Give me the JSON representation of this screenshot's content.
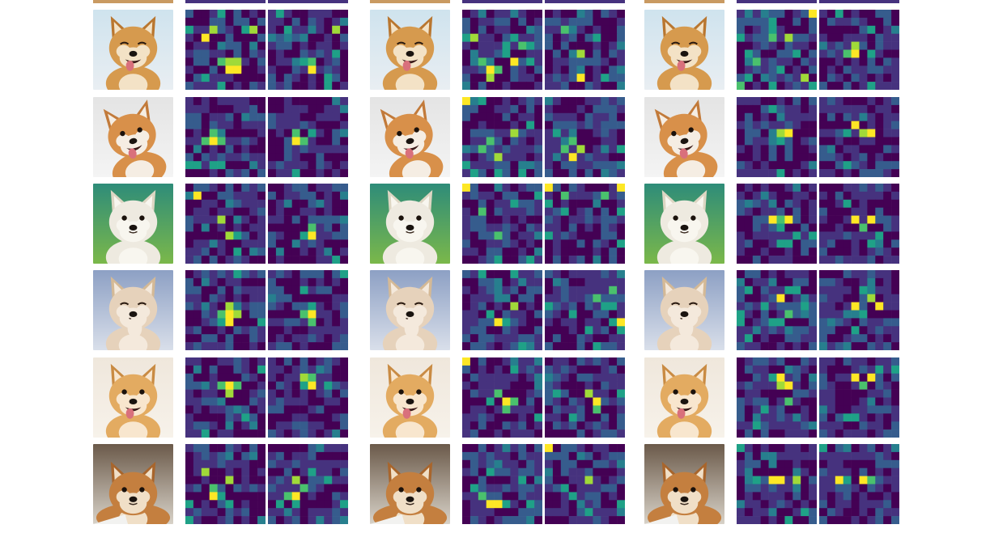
{
  "palette": {
    "viridis": [
      "#440154",
      "#46327e",
      "#365c8d",
      "#277f8e",
      "#1fa187",
      "#4ac16d",
      "#a0da39",
      "#fde725"
    ]
  },
  "groups": [
    {
      "rows": [
        {
          "dog": "shiba-smiling",
          "maps": [
            {
              "grid": 10,
              "hot": [
                [
                  5,
                  7
                ],
                [
                  6,
                  7
                ],
                [
                  2,
                  3
                ]
              ],
              "warm": [
                [
                  4,
                  6
                ],
                [
                  5,
                  6
                ],
                [
                  6,
                  6
                ],
                [
                  3,
                  2
                ],
                [
                  8,
                  2
                ],
                [
                  2,
                  8
                ]
              ],
              "noise": 0.35
            },
            {
              "grid": 10,
              "hot": [
                [
                  5,
                  7
                ]
              ],
              "warm": [
                [
                  2,
                  2
                ],
                [
                  8,
                  2
                ],
                [
                  5,
                  6
                ]
              ],
              "noise": 0.25
            }
          ]
        },
        {
          "dog": "corgi-grass",
          "maps": [
            {
              "grid": 10,
              "hot": [
                [
                  3,
                  5
                ]
              ],
              "warm": [
                [
                  2,
                  5
                ],
                [
                  3,
                  4
                ],
                [
                  4,
                  5
                ]
              ],
              "noise": 0.28
            },
            {
              "grid": 10,
              "hot": [
                [
                  3,
                  5
                ]
              ],
              "warm": [
                [
                  3,
                  4
                ],
                [
                  4,
                  5
                ]
              ],
              "noise": 0.22
            }
          ]
        },
        {
          "dog": "white-puppy",
          "maps": [
            {
              "grid": 10,
              "hot": [
                [
                  1,
                  1
                ]
              ],
              "warm": [
                [
                  5,
                  6
                ],
                [
                  6,
                  6
                ],
                [
                  4,
                  4
                ]
              ],
              "noise": 0.28
            },
            {
              "grid": 10,
              "hot": [
                [
                  5,
                  6
                ]
              ],
              "warm": [
                [
                  5,
                  5
                ],
                [
                  4,
                  6
                ]
              ],
              "noise": 0.22
            }
          ]
        },
        {
          "dog": "fluffy-puppy",
          "maps": [
            {
              "grid": 10,
              "hot": [
                [
                  5,
                  5
                ],
                [
                  5,
                  6
                ]
              ],
              "warm": [
                [
                  4,
                  5
                ],
                [
                  6,
                  5
                ],
                [
                  5,
                  4
                ],
                [
                  4,
                  6
                ]
              ],
              "noise": 0.32
            },
            {
              "grid": 10,
              "hot": [
                [
                  5,
                  5
                ]
              ],
              "warm": [
                [
                  5,
                  4
                ],
                [
                  4,
                  5
                ],
                [
                  5,
                  6
                ]
              ],
              "noise": 0.25
            }
          ]
        },
        {
          "dog": "cream-puppy",
          "maps": [
            {
              "grid": 10,
              "hot": [
                [
                  5,
                  3
                ]
              ],
              "warm": [
                [
                  4,
                  3
                ],
                [
                  6,
                  3
                ],
                [
                  5,
                  4
                ]
              ],
              "noise": 0.26
            },
            {
              "grid": 10,
              "hot": [
                [
                  5,
                  3
                ]
              ],
              "warm": [
                [
                  4,
                  2
                ],
                [
                  5,
                  2
                ],
                [
                  4,
                  3
                ]
              ],
              "noise": 0.22
            }
          ]
        },
        {
          "dog": "shiba-lying",
          "maps": [
            {
              "grid": 10,
              "hot": [
                [
                  3,
                  6
                ]
              ],
              "warm": [
                [
                  3,
                  5
                ],
                [
                  4,
                  6
                ],
                [
                  5,
                  4
                ],
                [
                  2,
                  3
                ]
              ],
              "noise": 0.32
            },
            {
              "grid": 10,
              "hot": [
                [
                  3,
                  6
                ]
              ],
              "warm": [
                [
                  3,
                  4
                ],
                [
                  4,
                  5
                ],
                [
                  2,
                  6
                ],
                [
                  5,
                  3
                ]
              ],
              "noise": 0.3
            }
          ]
        }
      ]
    },
    {
      "rows": [
        {
          "dog": "shiba-smiling",
          "maps": [
            {
              "grid": 10,
              "hot": [
                [
                  3,
                  7
                ],
                [
                  6,
                  6
                ]
              ],
              "warm": [
                [
                  2,
                  6
                ],
                [
                  4,
                  7
                ],
                [
                  5,
                  5
                ],
                [
                  1,
                  3
                ],
                [
                  7,
                  4
                ],
                [
                  3,
                  8
                ]
              ],
              "noise": 0.4
            },
            {
              "grid": 10,
              "hot": [
                [
                  4,
                  8
                ]
              ],
              "warm": [
                [
                  2,
                  2
                ],
                [
                  6,
                  3
                ],
                [
                  4,
                  5
                ]
              ],
              "noise": 0.3
            }
          ]
        },
        {
          "dog": "corgi-grass",
          "maps": [
            {
              "grid": 10,
              "hot": [
                [
                  0,
                  0
                ]
              ],
              "warm": [
                [
                  3,
                  5
                ],
                [
                  2,
                  6
                ],
                [
                  4,
                  7
                ],
                [
                  6,
                  4
                ]
              ],
              "noise": 0.34
            },
            {
              "grid": 10,
              "hot": [
                [
                  3,
                  7
                ]
              ],
              "warm": [
                [
                  3,
                  5
                ],
                [
                  4,
                  6
                ],
                [
                  2,
                  6
                ]
              ],
              "noise": 0.28
            }
          ]
        },
        {
          "dog": "white-puppy",
          "maps": [
            {
              "grid": 10,
              "hot": [
                [
                  0,
                  0
                ]
              ],
              "warm": [
                [
                  2,
                  3
                ],
                [
                  6,
                  2
                ],
                [
                  4,
                  6
                ]
              ],
              "noise": 0.3
            },
            {
              "grid": 10,
              "hot": [
                [
                  0,
                  0
                ],
                [
                  9,
                  0
                ]
              ],
              "warm": [
                [
                  2,
                  1
                ],
                [
                  7,
                  1
                ]
              ],
              "noise": 0.3
            }
          ]
        },
        {
          "dog": "fluffy-puppy",
          "maps": [
            {
              "grid": 10,
              "hot": [
                [
                  4,
                  6
                ]
              ],
              "warm": [
                [
                  5,
                  6
                ],
                [
                  3,
                  5
                ],
                [
                  6,
                  4
                ]
              ],
              "noise": 0.34
            },
            {
              "grid": 10,
              "hot": [
                [
                  9,
                  6
                ]
              ],
              "warm": [
                [
                  0,
                  4
                ],
                [
                  6,
                  3
                ],
                [
                  8,
                  2
                ]
              ],
              "noise": 0.34
            }
          ]
        },
        {
          "dog": "cream-puppy",
          "maps": [
            {
              "grid": 10,
              "hot": [
                [
                  0,
                  0
                ],
                [
                  5,
                  5
                ]
              ],
              "warm": [
                [
                  4,
                  4
                ],
                [
                  6,
                  5
                ],
                [
                  5,
                  6
                ]
              ],
              "noise": 0.3
            },
            {
              "grid": 10,
              "hot": [
                [
                  6,
                  5
                ]
              ],
              "warm": [
                [
                  5,
                  4
                ],
                [
                  6,
                  6
                ]
              ],
              "noise": 0.26
            }
          ]
        },
        {
          "dog": "shiba-lying",
          "maps": [
            {
              "grid": 10,
              "hot": [
                [
                  3,
                  7
                ],
                [
                  4,
                  7
                ]
              ],
              "warm": [
                [
                  2,
                  6
                ],
                [
                  5,
                  7
                ],
                [
                  3,
                  3
                ]
              ],
              "noise": 0.38
            },
            {
              "grid": 10,
              "hot": [
                [
                  0,
                  0
                ]
              ],
              "warm": [
                [
                  2,
                  5
                ],
                [
                  3,
                  6
                ],
                [
                  5,
                  4
                ]
              ],
              "noise": 0.34
            }
          ]
        }
      ]
    },
    {
      "rows": [
        {
          "dog": "shiba-smiling",
          "maps": [
            {
              "grid": 10,
              "hot": [
                [
                  9,
                  0
                ]
              ],
              "warm": [
                [
                  0,
                  9
                ],
                [
                  4,
                  3
                ],
                [
                  6,
                  3
                ],
                [
                  8,
                  8
                ],
                [
                  2,
                  6
                ]
              ],
              "noise": 0.42
            },
            {
              "grid": 10,
              "hot": [
                [
                  4,
                  5
                ]
              ],
              "warm": [
                [
                  3,
                  5
                ],
                [
                  6,
                  5
                ],
                [
                  4,
                  4
                ]
              ],
              "noise": 0.3
            }
          ]
        },
        {
          "dog": "corgi-grass",
          "maps": [
            {
              "grid": 10,
              "hot": [
                [
                  6,
                  4
                ]
              ],
              "warm": [
                [
                  5,
                  4
                ],
                [
                  5,
                  5
                ]
              ],
              "noise": 0.24
            },
            {
              "grid": 10,
              "hot": [
                [
                  4,
                  3
                ],
                [
                  6,
                  4
                ]
              ],
              "warm": [
                [
                  5,
                  4
                ]
              ],
              "noise": 0.22
            }
          ]
        },
        {
          "dog": "white-puppy",
          "maps": [
            {
              "grid": 10,
              "hot": [
                [
                  4,
                  4
                ],
                [
                  6,
                  4
                ]
              ],
              "warm": [
                [
                  5,
                  4
                ],
                [
                  5,
                  5
                ]
              ],
              "noise": 0.24
            },
            {
              "grid": 10,
              "hot": [
                [
                  4,
                  4
                ],
                [
                  6,
                  4
                ]
              ],
              "warm": [
                [
                  5,
                  5
                ]
              ],
              "noise": 0.22
            }
          ]
        },
        {
          "dog": "fluffy-puppy",
          "maps": [
            {
              "grid": 10,
              "hot": [
                [
                  5,
                  3
                ]
              ],
              "warm": [
                [
                  3,
                  4
                ],
                [
                  6,
                  5
                ],
                [
                  4,
                  6
                ],
                [
                  7,
                  2
                ]
              ],
              "noise": 0.36
            },
            {
              "grid": 10,
              "hot": [
                [
                  4,
                  4
                ],
                [
                  7,
                  4
                ]
              ],
              "warm": [
                [
                  5,
                  5
                ],
                [
                  6,
                  3
                ]
              ],
              "noise": 0.28
            }
          ]
        },
        {
          "dog": "cream-puppy",
          "maps": [
            {
              "grid": 10,
              "hot": [
                [
                  5,
                  2
                ],
                [
                  6,
                  3
                ]
              ],
              "warm": [
                [
                  4,
                  2
                ],
                [
                  5,
                  3
                ],
                [
                  6,
                  5
                ]
              ],
              "noise": 0.26
            },
            {
              "grid": 10,
              "hot": [
                [
                  4,
                  2
                ],
                [
                  6,
                  2
                ]
              ],
              "warm": [
                [
                  5,
                  3
                ]
              ],
              "noise": 0.22
            }
          ]
        },
        {
          "dog": "shiba-lying",
          "maps": [
            {
              "grid": 10,
              "hot": [
                [
                  4,
                  4
                ],
                [
                  5,
                  4
                ]
              ],
              "warm": [
                [
                  2,
                  4
                ],
                [
                  7,
                  4
                ]
              ],
              "noise": 0.3
            },
            {
              "grid": 10,
              "hot": [
                [
                  2,
                  4
                ],
                [
                  5,
                  4
                ]
              ],
              "warm": [
                [
                  3,
                  4
                ],
                [
                  6,
                  4
                ]
              ],
              "noise": 0.28
            }
          ]
        }
      ]
    }
  ]
}
